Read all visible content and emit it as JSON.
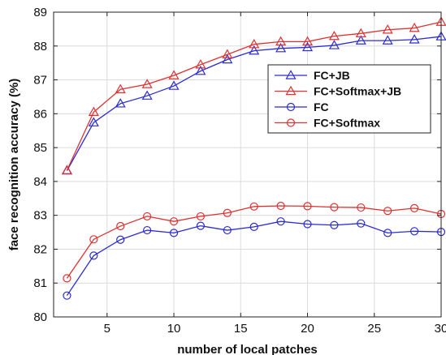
{
  "chart_data": {
    "type": "line",
    "title": "",
    "xlabel": "number of local patches",
    "ylabel": "face recognition accuracy (%)",
    "xlim": [
      1,
      30
    ],
    "ylim": [
      80,
      89
    ],
    "xticks": [
      5,
      10,
      15,
      20,
      25,
      30
    ],
    "yticks": [
      80,
      81,
      82,
      83,
      84,
      85,
      86,
      87,
      88,
      89
    ],
    "grid": true,
    "legend_position": "upper-right",
    "x": [
      2,
      4,
      6,
      8,
      10,
      12,
      14,
      16,
      18,
      20,
      22,
      24,
      26,
      28,
      30
    ],
    "series": [
      {
        "name": "FC+JB",
        "color": "#2b2bd6",
        "marker": "triangle",
        "values": [
          84.32,
          85.74,
          86.3,
          86.53,
          86.82,
          87.26,
          87.6,
          87.86,
          87.93,
          87.96,
          88.02,
          88.16,
          88.16,
          88.19,
          88.28
        ]
      },
      {
        "name": "FC+Softmax+JB",
        "color": "#e03030",
        "marker": "triangle",
        "values": [
          84.33,
          86.05,
          86.72,
          86.87,
          87.13,
          87.45,
          87.75,
          88.05,
          88.13,
          88.13,
          88.29,
          88.37,
          88.48,
          88.53,
          88.71
        ]
      },
      {
        "name": "FC",
        "color": "#2b2bd6",
        "marker": "circle",
        "values": [
          80.63,
          81.81,
          82.28,
          82.56,
          82.48,
          82.69,
          82.56,
          82.66,
          82.82,
          82.74,
          82.71,
          82.76,
          82.48,
          82.53,
          82.51
        ]
      },
      {
        "name": "FC+Softmax",
        "color": "#e03030",
        "marker": "circle",
        "values": [
          81.14,
          82.29,
          82.68,
          82.97,
          82.82,
          82.97,
          83.07,
          83.26,
          83.28,
          83.27,
          83.24,
          83.23,
          83.13,
          83.21,
          83.04
        ]
      }
    ]
  }
}
